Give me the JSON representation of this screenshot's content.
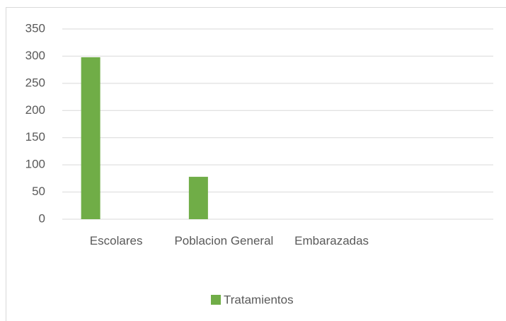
{
  "chart_data": {
    "type": "bar",
    "categories": [
      "Escolares",
      "Poblacion General",
      "Embarazadas",
      null
    ],
    "series": [
      {
        "name": "Tratamientos",
        "color": "#70ad47",
        "values": [
          298,
          78,
          0,
          null
        ]
      }
    ],
    "ylim": [
      0,
      350
    ],
    "yticks": [
      0,
      50,
      100,
      150,
      200,
      250,
      300,
      350
    ],
    "grid": true,
    "legend": "bottom"
  }
}
